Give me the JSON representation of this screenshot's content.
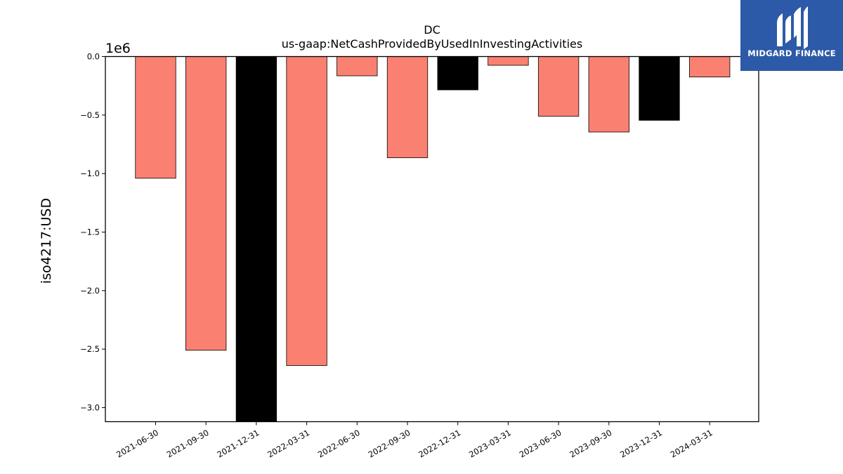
{
  "logo": {
    "text": "MIDGARD FINANCE",
    "bg_color": "#2c5aa8"
  },
  "chart_data": {
    "type": "bar",
    "title": "DC",
    "subtitle": "us-gaap:NetCashProvidedByUsedInInvestingActivities",
    "ylabel": "iso4217:USD",
    "xlabel": "",
    "scale_label": "1e6",
    "ylim": [
      -3120000,
      0
    ],
    "yticks": [
      0.0,
      -0.5,
      -1.0,
      -1.5,
      -2.0,
      -2.5,
      -3.0
    ],
    "ytick_labels": [
      "0.0",
      "−0.5",
      "−1.0",
      "−1.5",
      "−2.0",
      "−2.5",
      "−3.0"
    ],
    "categories": [
      "2021-06-30",
      "2021-09-30",
      "2021-12-31",
      "2022-03-31",
      "2022-06-30",
      "2022-09-30",
      "2022-12-31",
      "2023-03-31",
      "2023-06-30",
      "2023-09-30",
      "2023-12-31",
      "2024-03-31"
    ],
    "values": [
      -1040000,
      -2510000,
      -3120000,
      -2640000,
      -165000,
      -865000,
      -285000,
      -75000,
      -510000,
      -645000,
      -545000,
      -175000
    ],
    "colors": [
      "#fa8072",
      "#fa8072",
      "#000000",
      "#fa8072",
      "#fa8072",
      "#fa8072",
      "#000000",
      "#fa8072",
      "#fa8072",
      "#fa8072",
      "#000000",
      "#fa8072"
    ],
    "grid": false,
    "legend": "none"
  }
}
